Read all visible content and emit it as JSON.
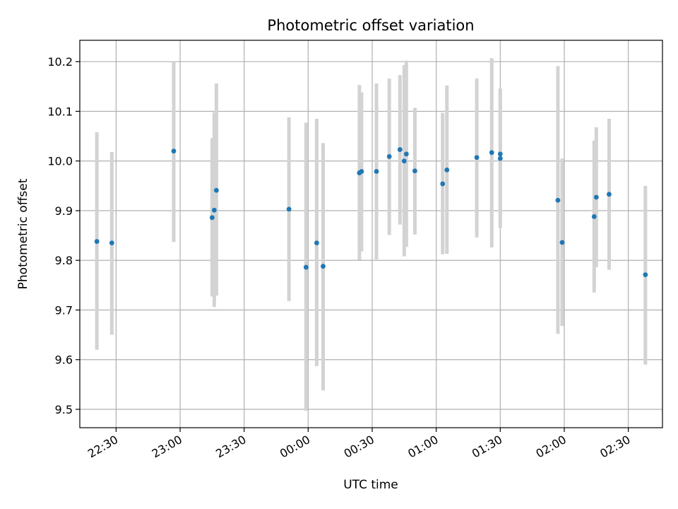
{
  "chart_data": {
    "type": "scatter",
    "title": "Photometric offset variation",
    "xlabel": "UTC time",
    "ylabel": "Photometric offset",
    "x_axis_type": "time",
    "xlim": [
      "22:13",
      "02:46"
    ],
    "ylim": [
      9.463,
      10.243
    ],
    "x_ticks": [
      "22:30",
      "23:00",
      "23:30",
      "00:00",
      "00:30",
      "01:00",
      "01:30",
      "02:00",
      "02:30"
    ],
    "x_tick_labels": [
      "22:30",
      "23:00",
      "23:30",
      "00:00",
      "00:30",
      "01:00",
      "01:30",
      "02:00",
      "02:30"
    ],
    "y_ticks": [
      9.5,
      9.6,
      9.7,
      9.8,
      9.9,
      10.0,
      10.1,
      10.2
    ],
    "y_tick_labels": [
      "9.5",
      "9.6",
      "9.7",
      "9.8",
      "9.9",
      "10.0",
      "10.1",
      "10.2"
    ],
    "grid": true,
    "marker_color": "#1f77b4",
    "errorbar_color": "#d3d3d3",
    "points": [
      {
        "x": "22:21",
        "y": 9.838,
        "low": 9.62,
        "high": 10.058
      },
      {
        "x": "22:28",
        "y": 9.835,
        "low": 9.65,
        "high": 10.018
      },
      {
        "x": "22:57",
        "y": 10.02,
        "low": 9.837,
        "high": 10.2
      },
      {
        "x": "23:15",
        "y": 9.886,
        "low": 9.727,
        "high": 10.046
      },
      {
        "x": "23:16",
        "y": 9.901,
        "low": 9.706,
        "high": 10.098
      },
      {
        "x": "23:17",
        "y": 9.941,
        "low": 9.729,
        "high": 10.156
      },
      {
        "x": "23:51",
        "y": 9.903,
        "low": 9.718,
        "high": 10.088
      },
      {
        "x": "23:59",
        "y": 9.786,
        "low": 9.497,
        "high": 10.077
      },
      {
        "x": "00:04",
        "y": 9.835,
        "low": 9.587,
        "high": 10.085
      },
      {
        "x": "00:07",
        "y": 9.788,
        "low": 9.538,
        "high": 10.036
      },
      {
        "x": "00:24",
        "y": 9.976,
        "low": 9.801,
        "high": 10.153
      },
      {
        "x": "00:25",
        "y": 9.979,
        "low": 9.818,
        "high": 10.138
      },
      {
        "x": "00:32",
        "y": 9.979,
        "low": 9.802,
        "high": 10.156
      },
      {
        "x": "00:38",
        "y": 10.009,
        "low": 9.851,
        "high": 10.166
      },
      {
        "x": "00:43",
        "y": 10.023,
        "low": 9.872,
        "high": 10.173
      },
      {
        "x": "00:45",
        "y": 10.0,
        "low": 9.808,
        "high": 10.193
      },
      {
        "x": "00:46",
        "y": 10.014,
        "low": 9.827,
        "high": 10.202
      },
      {
        "x": "00:50",
        "y": 9.98,
        "low": 9.852,
        "high": 10.107
      },
      {
        "x": "01:03",
        "y": 9.954,
        "low": 9.812,
        "high": 10.097
      },
      {
        "x": "01:05",
        "y": 9.982,
        "low": 9.813,
        "high": 10.152
      },
      {
        "x": "01:19",
        "y": 10.007,
        "low": 9.846,
        "high": 10.166
      },
      {
        "x": "01:26",
        "y": 10.017,
        "low": 9.826,
        "high": 10.207
      },
      {
        "x": "01:30",
        "y": 10.014,
        "low": 9.884,
        "high": 10.143
      },
      {
        "x": "01:30",
        "y": 10.005,
        "low": 9.865,
        "high": 10.146
      },
      {
        "x": "01:57",
        "y": 9.921,
        "low": 9.652,
        "high": 10.191
      },
      {
        "x": "01:59",
        "y": 9.836,
        "low": 9.668,
        "high": 10.005
      },
      {
        "x": "02:14",
        "y": 9.888,
        "low": 9.735,
        "high": 10.041
      },
      {
        "x": "02:15",
        "y": 9.927,
        "low": 9.786,
        "high": 10.068
      },
      {
        "x": "02:21",
        "y": 9.933,
        "low": 9.781,
        "high": 10.085
      },
      {
        "x": "02:38",
        "y": 9.771,
        "low": 9.59,
        "high": 9.95
      }
    ]
  }
}
